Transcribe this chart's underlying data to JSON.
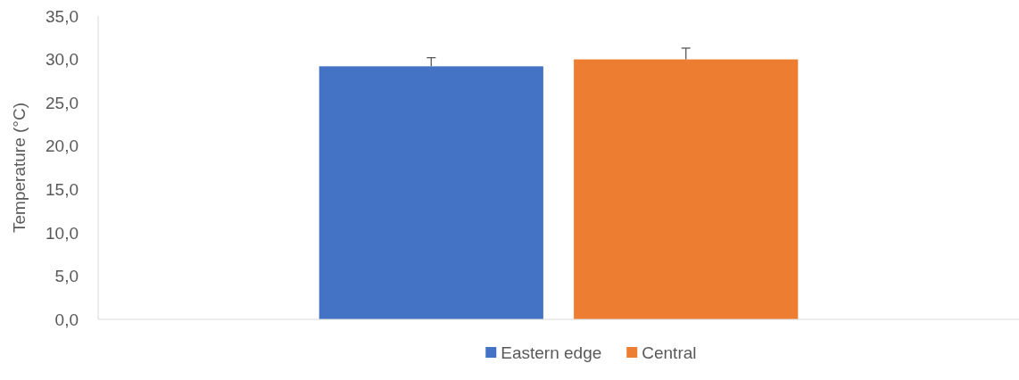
{
  "chart_data": {
    "type": "bar",
    "ylabel": "Temperature (°C)",
    "categories": [
      null
    ],
    "series": [
      {
        "name": "Eastern edge",
        "color": "#4472c4",
        "values": [
          29.2
        ],
        "errors": [
          [
            29.2,
            30.2
          ]
        ]
      },
      {
        "name": "Central",
        "color": "#ed7d31",
        "values": [
          30.0
        ],
        "errors": [
          [
            30.0,
            31.3
          ]
        ]
      }
    ],
    "ylim": [
      0,
      35
    ],
    "yticks": [
      {
        "value": 0,
        "label": "0,0"
      },
      {
        "value": 5,
        "label": "5,0"
      },
      {
        "value": 10,
        "label": "10,0"
      },
      {
        "value": 15,
        "label": "15,0"
      },
      {
        "value": 20,
        "label": "20,0"
      },
      {
        "value": 25,
        "label": "25,0"
      },
      {
        "value": 30,
        "label": "30,0"
      },
      {
        "value": 35,
        "label": "35,0"
      }
    ],
    "legend": "bottom"
  }
}
